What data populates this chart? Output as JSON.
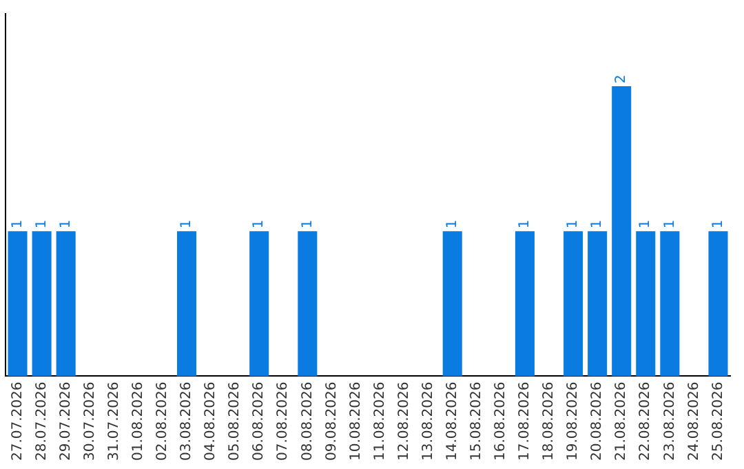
{
  "chart_data": {
    "type": "bar",
    "categories": [
      "27.07.2026",
      "28.07.2026",
      "29.07.2026",
      "30.07.2026",
      "31.07.2026",
      "01.08.2026",
      "02.08.2026",
      "03.08.2026",
      "04.08.2026",
      "05.08.2026",
      "06.08.2026",
      "07.08.2026",
      "08.08.2026",
      "09.08.2026",
      "10.08.2026",
      "11.08.2026",
      "12.08.2026",
      "13.08.2026",
      "14.08.2026",
      "15.08.2026",
      "16.08.2026",
      "17.08.2026",
      "18.08.2026",
      "19.08.2026",
      "20.08.2026",
      "21.08.2026",
      "22.08.2026",
      "23.08.2026",
      "24.08.2026",
      "25.08.2026"
    ],
    "values": [
      1,
      1,
      1,
      0,
      0,
      0,
      0,
      1,
      0,
      0,
      1,
      0,
      1,
      0,
      0,
      0,
      0,
      0,
      1,
      0,
      0,
      1,
      0,
      1,
      1,
      2,
      1,
      1,
      0,
      1
    ],
    "value_labels": [
      "1",
      "1",
      "1",
      null,
      null,
      null,
      null,
      "1",
      null,
      null,
      "1",
      null,
      "1",
      null,
      null,
      null,
      null,
      null,
      "1",
      null,
      null,
      "1",
      null,
      "1",
      "1",
      "2",
      "1",
      "1",
      null,
      "1"
    ],
    "color": "#0a7be0",
    "grid": false,
    "legend": false,
    "tick_labels": "x"
  }
}
